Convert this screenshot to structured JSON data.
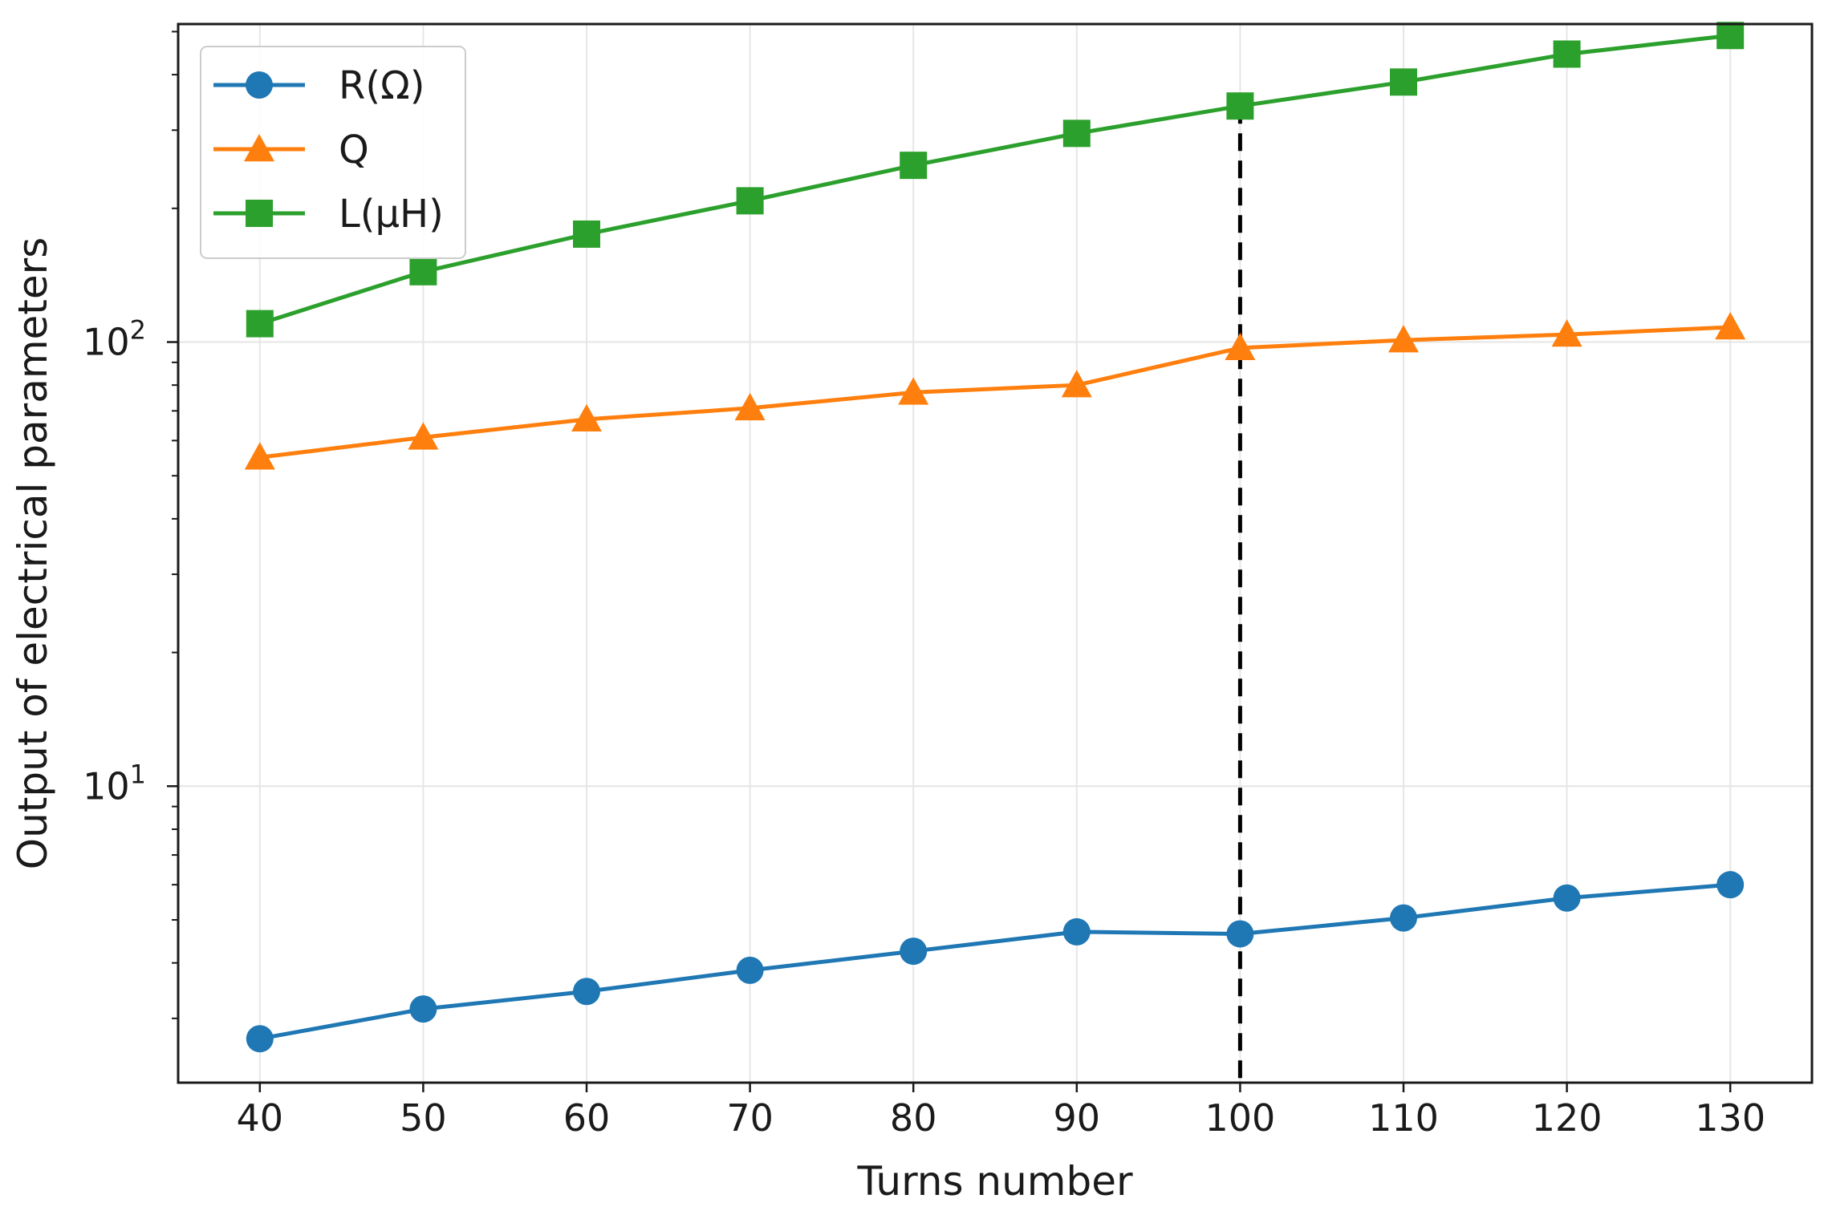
{
  "chart_data": {
    "type": "line",
    "title": "",
    "xlabel": "Turns number",
    "ylabel": "Output of electrical parameters",
    "yscale": "log",
    "x": [
      40,
      50,
      60,
      70,
      80,
      90,
      100,
      110,
      120,
      130
    ],
    "xlim": [
      35,
      135
    ],
    "ylim": [
      2.15,
      520
    ],
    "xticks": [
      "40",
      "50",
      "60",
      "70",
      "80",
      "90",
      "100",
      "110",
      "120",
      "130"
    ],
    "yticks": [
      {
        "value": 10,
        "base": "10",
        "exp": "1"
      },
      {
        "value": 100,
        "base": "10",
        "exp": "2"
      }
    ],
    "grid": true,
    "legend_position": "top-left",
    "series": [
      {
        "name": "R(Ω)",
        "color": "#1f77b4",
        "marker": "circle",
        "values": [
          2.7,
          3.15,
          3.45,
          3.85,
          4.25,
          4.7,
          4.65,
          5.05,
          5.6,
          6.0
        ]
      },
      {
        "name": "Q",
        "color": "#ff7f0e",
        "marker": "triangle",
        "values": [
          55,
          61,
          67,
          71,
          77,
          80,
          97,
          101,
          104,
          108
        ]
      },
      {
        "name": "L(μH)",
        "color": "#2ca02c",
        "marker": "square",
        "values": [
          110,
          144,
          175,
          208,
          250,
          295,
          340,
          385,
          445,
          490
        ]
      }
    ],
    "annotations": [
      {
        "type": "vertical-dashed-line",
        "x": 100,
        "from_value": 4.65,
        "to_value": 340,
        "color": "#000000"
      }
    ]
  }
}
